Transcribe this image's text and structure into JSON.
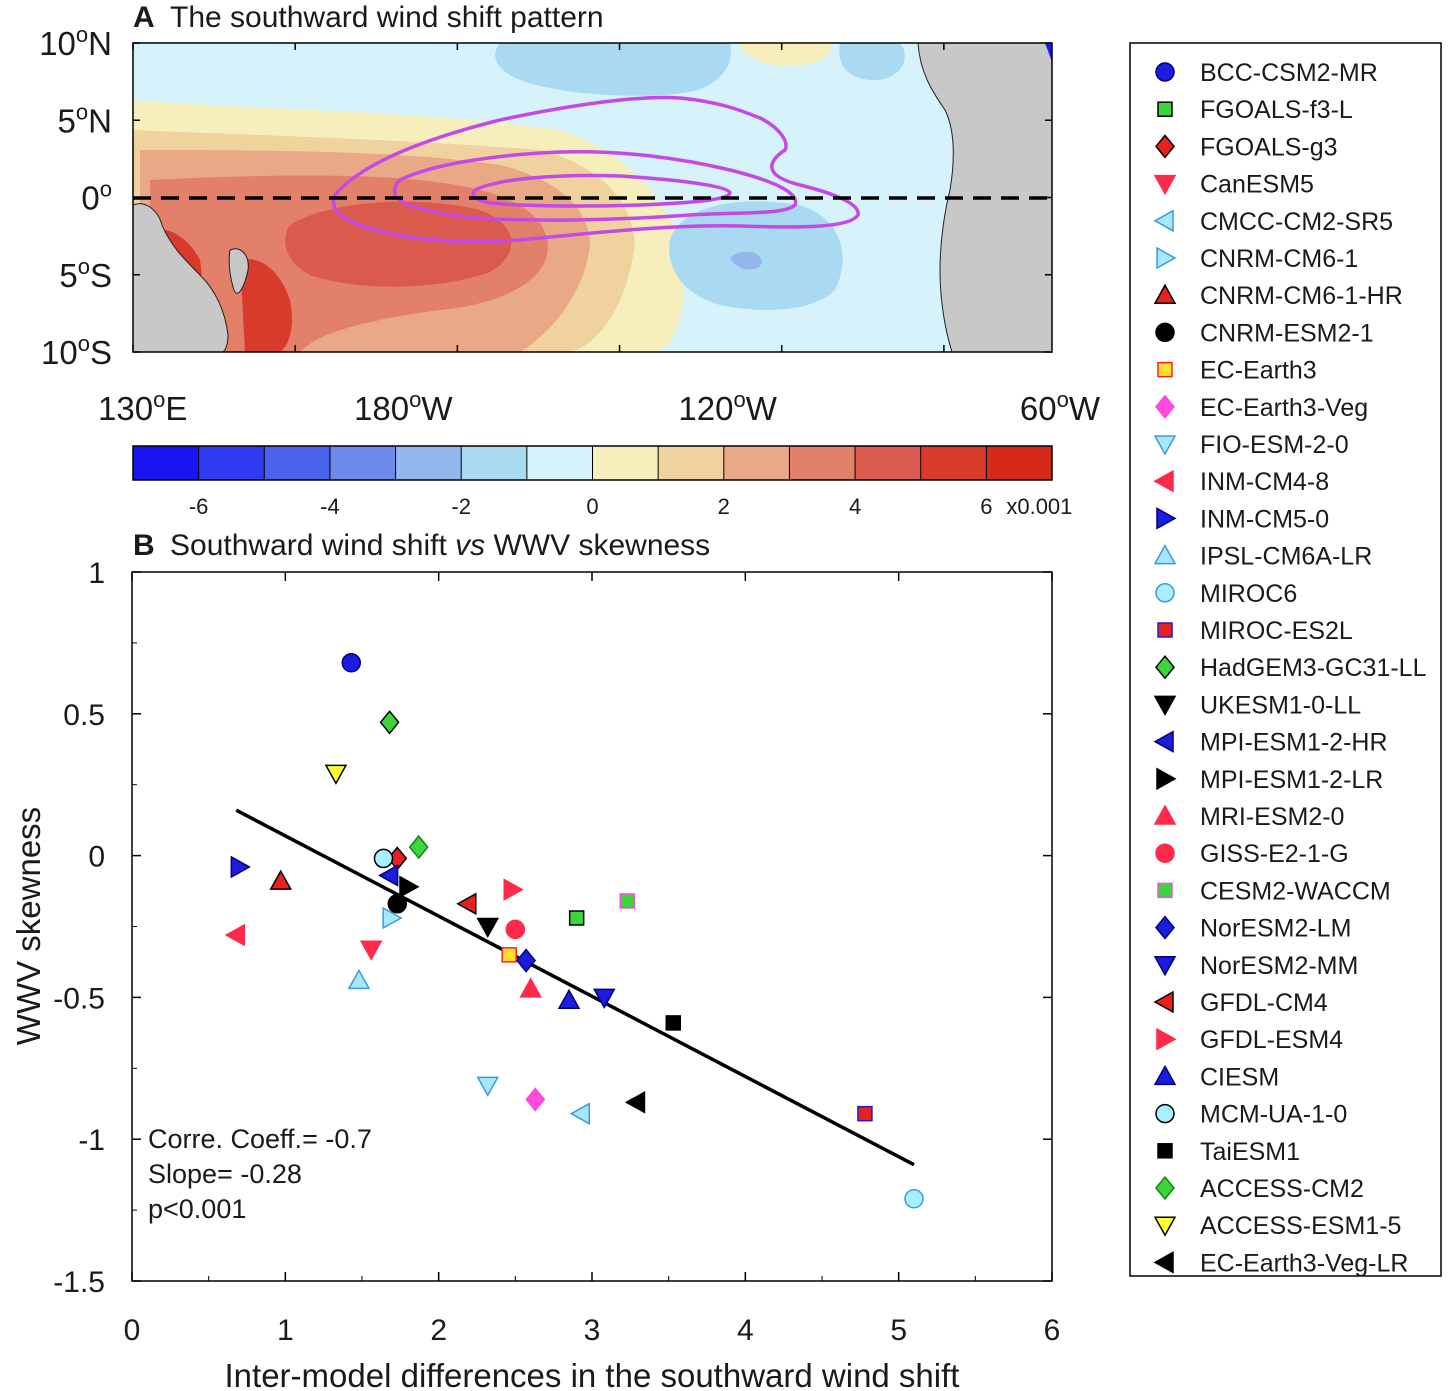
{
  "panel_a": {
    "letter": "A",
    "title": "The southward wind shift pattern",
    "lat_labels": [
      {
        "base": "10",
        "sup": "o",
        "hem": "N",
        "lat": 10
      },
      {
        "base": "5",
        "sup": "o",
        "hem": "N",
        "lat": 5
      },
      {
        "base": "0",
        "sup": "o",
        "hem": "",
        "lat": 0
      },
      {
        "base": "5",
        "sup": "o",
        "hem": "S",
        "lat": -5
      },
      {
        "base": "10",
        "sup": "o",
        "hem": "S",
        "lat": -10
      }
    ],
    "lon_labels": [
      {
        "base": "130",
        "sup": "o",
        "hem": "E",
        "lon": 130
      },
      {
        "base": "180",
        "sup": "o",
        "hem": "W",
        "lon": 180
      },
      {
        "base": "120",
        "sup": "o",
        "hem": "W",
        "lon": 240
      },
      {
        "base": "60",
        "sup": "o",
        "hem": "W",
        "lon": 300
      }
    ],
    "colors": {
      "land": "#c8c8c8",
      "contour": "#c44ae6",
      "equator": "#000000"
    }
  },
  "colorbar": {
    "colors": [
      "#1a14f0",
      "#2e3af0",
      "#4a62ec",
      "#6e8ae8",
      "#93b7ec",
      "#a9daf2",
      "#d6f2fb",
      "#f6efbc",
      "#f0d29e",
      "#e9a886",
      "#e2806a",
      "#db5a4e",
      "#d83a2c",
      "#d62a18"
    ],
    "tick_labels": [
      "-6",
      "-4",
      "-2",
      "0",
      "2",
      "4",
      "6"
    ],
    "tick_values": [
      -6,
      -4,
      -2,
      0,
      2,
      4,
      6
    ],
    "min": -7,
    "max": 7,
    "scale_label": "x0.001"
  },
  "chart_data": {
    "type": "scatter",
    "letter": "B",
    "title_part1": "Southward wind shift ",
    "title_italic": "vs",
    "title_part2": " WWV skewness",
    "xlabel": "Inter-model differences in the southward wind shift",
    "ylabel": "WWV skewness",
    "xlim": [
      0,
      6
    ],
    "ylim": [
      -1.5,
      1
    ],
    "x_ticks": [
      0,
      1,
      2,
      3,
      4,
      5,
      6
    ],
    "x_tick_labels": [
      "0",
      "1",
      "2",
      "3",
      "4",
      "5",
      "6"
    ],
    "y_ticks": [
      1,
      0.5,
      0,
      -0.5,
      -1,
      -1.5
    ],
    "y_tick_labels": [
      "1",
      "0.5",
      "0",
      "-0.5",
      "-1",
      "-1.5"
    ],
    "regression": {
      "x": [
        0.68,
        5.1
      ],
      "y": [
        0.16,
        -1.09
      ]
    },
    "stats": [
      "Corre. Coeff.= -0.7",
      "Slope= -0.28",
      "p<0.001"
    ],
    "models": [
      {
        "name": "BCC-CSM2-MR",
        "x": 1.43,
        "y": 0.68,
        "marker": "circle",
        "fill": "#1c1cdc",
        "stroke": "#000080"
      },
      {
        "name": "FGOALS-f3-L",
        "x": 2.9,
        "y": -0.22,
        "marker": "square",
        "fill": "#3ad63a",
        "stroke": "#000000"
      },
      {
        "name": "FGOALS-g3",
        "x": 1.73,
        "y": -0.01,
        "marker": "diamond",
        "fill": "#e82020",
        "stroke": "#000000"
      },
      {
        "name": "CanESM5",
        "x": 1.56,
        "y": -0.33,
        "marker": "tri-down",
        "fill": "#ff2a4a",
        "stroke": "#ff2a4a"
      },
      {
        "name": "CMCC-CM2-SR5",
        "x": 2.93,
        "y": -0.91,
        "marker": "tri-left",
        "fill": "#a8e8ff",
        "stroke": "#3a9ae0"
      },
      {
        "name": "CNRM-CM6-1",
        "x": 1.69,
        "y": -0.22,
        "marker": "tri-right",
        "fill": "#a8e8ff",
        "stroke": "#3a9ae0"
      },
      {
        "name": "CNRM-CM6-1-HR",
        "x": 0.97,
        "y": -0.09,
        "marker": "tri-up",
        "fill": "#e82020",
        "stroke": "#000000"
      },
      {
        "name": "CNRM-ESM2-1",
        "x": 1.73,
        "y": -0.17,
        "marker": "circle",
        "fill": "#000000",
        "stroke": "#000000"
      },
      {
        "name": "EC-Earth3",
        "x": 2.46,
        "y": -0.35,
        "marker": "square",
        "fill": "#ffe030",
        "stroke": "#ff2020"
      },
      {
        "name": "EC-Earth3-Veg",
        "x": 2.63,
        "y": -0.86,
        "marker": "diamond",
        "fill": "#ff4ae0",
        "stroke": "#ff4ae0"
      },
      {
        "name": "FIO-ESM-2-0",
        "x": 2.32,
        "y": -0.81,
        "marker": "tri-down",
        "fill": "#a8e8ff",
        "stroke": "#3a9ae0"
      },
      {
        "name": "INM-CM4-8",
        "x": 0.68,
        "y": -0.28,
        "marker": "tri-left",
        "fill": "#ff2a4a",
        "stroke": "#ff2a4a"
      },
      {
        "name": "INM-CM5-0",
        "x": 0.7,
        "y": -0.04,
        "marker": "tri-right",
        "fill": "#1c1cdc",
        "stroke": "#000080"
      },
      {
        "name": "IPSL-CM6A-LR",
        "x": 1.48,
        "y": -0.44,
        "marker": "tri-up",
        "fill": "#a8e8ff",
        "stroke": "#3a9ae0"
      },
      {
        "name": "MIROC6",
        "x": 5.1,
        "y": -1.21,
        "marker": "circle",
        "fill": "#a8f0ff",
        "stroke": "#3a9ae0"
      },
      {
        "name": "MIROC-ES2L",
        "x": 4.78,
        "y": -0.91,
        "marker": "square",
        "fill": "#e82020",
        "stroke": "#1c1cdc"
      },
      {
        "name": "HadGEM3-GC31-LL",
        "x": 1.68,
        "y": 0.47,
        "marker": "diamond",
        "fill": "#3ad63a",
        "stroke": "#000000"
      },
      {
        "name": "UKESM1-0-LL",
        "x": 2.32,
        "y": -0.25,
        "marker": "tri-down",
        "fill": "#000000",
        "stroke": "#000000"
      },
      {
        "name": "MPI-ESM1-2-HR",
        "x": 1.68,
        "y": -0.07,
        "marker": "tri-left",
        "fill": "#1c1cdc",
        "stroke": "#000080"
      },
      {
        "name": "MPI-ESM1-2-LR",
        "x": 1.8,
        "y": -0.11,
        "marker": "tri-right",
        "fill": "#000000",
        "stroke": "#000000"
      },
      {
        "name": "MRI-ESM2-0",
        "x": 2.6,
        "y": -0.47,
        "marker": "tri-up",
        "fill": "#ff2a4a",
        "stroke": "#ff2a4a"
      },
      {
        "name": "GISS-E2-1-G",
        "x": 2.5,
        "y": -0.26,
        "marker": "circle",
        "fill": "#ff2a4a",
        "stroke": "#ff2a4a"
      },
      {
        "name": "CESM2-WACCM",
        "x": 3.23,
        "y": -0.16,
        "marker": "square",
        "fill": "#3ad63a",
        "stroke": "#ff4ae0"
      },
      {
        "name": "NorESM2-LM",
        "x": 2.57,
        "y": -0.37,
        "marker": "diamond",
        "fill": "#1c1cdc",
        "stroke": "#000080"
      },
      {
        "name": "NorESM2-MM",
        "x": 3.08,
        "y": -0.5,
        "marker": "tri-down",
        "fill": "#1c1cdc",
        "stroke": "#000080"
      },
      {
        "name": "GFDL-CM4",
        "x": 2.19,
        "y": -0.17,
        "marker": "tri-left",
        "fill": "#e82020",
        "stroke": "#000000"
      },
      {
        "name": "GFDL-ESM4",
        "x": 2.48,
        "y": -0.12,
        "marker": "tri-right",
        "fill": "#ff2a4a",
        "stroke": "#ff2a4a"
      },
      {
        "name": "CIESM",
        "x": 2.85,
        "y": -0.51,
        "marker": "tri-up",
        "fill": "#1c1cdc",
        "stroke": "#000080"
      },
      {
        "name": "MCM-UA-1-0",
        "x": 1.64,
        "y": -0.01,
        "marker": "circle",
        "fill": "#a8f0ff",
        "stroke": "#000000"
      },
      {
        "name": "TaiESM1",
        "x": 3.53,
        "y": -0.59,
        "marker": "square",
        "fill": "#000000",
        "stroke": "#000000"
      },
      {
        "name": "ACCESS-CM2",
        "x": 1.87,
        "y": 0.03,
        "marker": "diamond",
        "fill": "#3ad63a",
        "stroke": "#1a801a"
      },
      {
        "name": "ACCESS-ESM1-5",
        "x": 1.33,
        "y": 0.29,
        "marker": "tri-down",
        "fill": "#ffff30",
        "stroke": "#000000"
      },
      {
        "name": "EC-Earth3-Veg-LR",
        "x": 3.29,
        "y": -0.87,
        "marker": "tri-left",
        "fill": "#000000",
        "stroke": "#000000"
      }
    ]
  }
}
